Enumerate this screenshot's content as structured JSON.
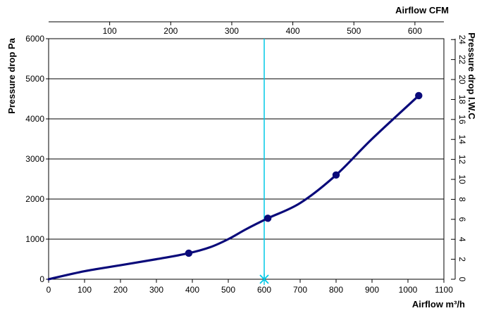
{
  "chart_data": {
    "type": "line",
    "x_axis": {
      "label": "Airflow m³/h",
      "range": [
        0,
        1100
      ],
      "ticks": [
        0,
        100,
        200,
        300,
        400,
        500,
        600,
        700,
        800,
        900,
        1000,
        1100
      ]
    },
    "y_axis": {
      "label": "Pressure drop Pa",
      "range": [
        0,
        6000
      ],
      "ticks": [
        0,
        1000,
        2000,
        3000,
        4000,
        5000,
        6000
      ]
    },
    "secondary_x_axis": {
      "label": "Airflow CFM",
      "ticks": [
        100,
        200,
        300,
        400,
        500,
        600
      ]
    },
    "secondary_y_axis": {
      "label": "Pressure drop I.W.C",
      "ticks": [
        0,
        2,
        4,
        6,
        8,
        10,
        12,
        14,
        16,
        18,
        20,
        22,
        24
      ]
    },
    "grid": "horizontal",
    "series": [
      {
        "color": "#0a0a7a",
        "curve_points": [
          {
            "x": 0,
            "y": 0
          },
          {
            "x": 100,
            "y": 200
          },
          {
            "x": 200,
            "y": 350
          },
          {
            "x": 300,
            "y": 500
          },
          {
            "x": 390,
            "y": 650
          },
          {
            "x": 450,
            "y": 800
          },
          {
            "x": 500,
            "y": 1000
          },
          {
            "x": 550,
            "y": 1250
          },
          {
            "x": 610,
            "y": 1520
          },
          {
            "x": 700,
            "y": 1900
          },
          {
            "x": 800,
            "y": 2600
          },
          {
            "x": 900,
            "y": 3500
          },
          {
            "x": 1030,
            "y": 4580
          }
        ],
        "markers": [
          {
            "x": 390,
            "y": 650
          },
          {
            "x": 610,
            "y": 1520
          },
          {
            "x": 800,
            "y": 2600
          },
          {
            "x": 1030,
            "y": 4580
          }
        ]
      }
    ],
    "reference_line": {
      "x": 600,
      "color": "#00c8e6",
      "marker": "x"
    }
  }
}
